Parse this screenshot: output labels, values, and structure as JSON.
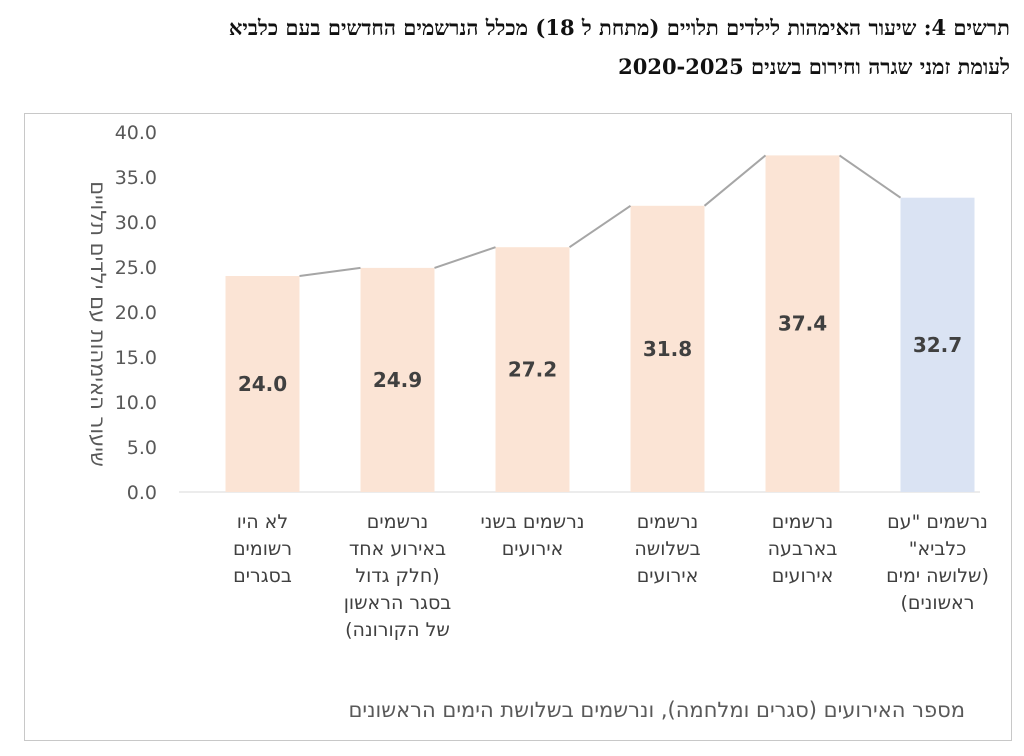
{
  "chart_data": {
    "type": "bar",
    "title": "תרשים 4: שיעור האימהות לילדים תלויים (מתחת ל 18) מכלל הנרשמים החדשים בעם כלביא לעומת זמני שגרה וחירום בשנים 2020-2025",
    "title_lines": [
      "תרשים 4: שיעור האימהות לילדים תלויים (מתחת ל 18) מכלל הנרשמים החדשים בעם כלביא",
      "לעומת זמני שגרה וחירום בשנים 2020-2025"
    ],
    "ylabel": "שיעור האימהות עם ילדים תלויים",
    "xlabel": "מספר האירועים (סגרים ומלחמה), ונרשמים בשלושת הימים הראשונים",
    "ylim": [
      0,
      40
    ],
    "yticks": [
      "0.0",
      "5.0",
      "10.0",
      "15.0",
      "20.0",
      "25.0",
      "30.0",
      "35.0",
      "40.0"
    ],
    "categories": [
      [
        "לא היו",
        "רשומים",
        "בסגרים"
      ],
      [
        "נרשמים",
        "באירוע אחד",
        "(חלק גדול",
        "בסגר הראשון",
        "של הקורונה)"
      ],
      [
        "נרשמים בשני",
        "אירועים"
      ],
      [
        "נרשמים",
        "בשלושה",
        "אירועים"
      ],
      [
        "נרשמים",
        "בארבעה",
        "אירועים"
      ],
      [
        "נרשמים \"עם",
        "כלביא\"",
        "(שלושה ימים",
        "ראשונים)"
      ]
    ],
    "values": [
      24.0,
      24.9,
      27.2,
      31.8,
      37.4,
      32.7
    ],
    "value_labels": [
      "24.0",
      "24.9",
      "27.2",
      "31.8",
      "37.4",
      "32.7"
    ],
    "bar_colors": [
      "#fbe4d5",
      "#fbe4d5",
      "#fbe4d5",
      "#fbe4d5",
      "#fbe4d5",
      "#dae3f3"
    ],
    "connector_color": "#a6a6a6",
    "grid": false,
    "legend": "none"
  }
}
